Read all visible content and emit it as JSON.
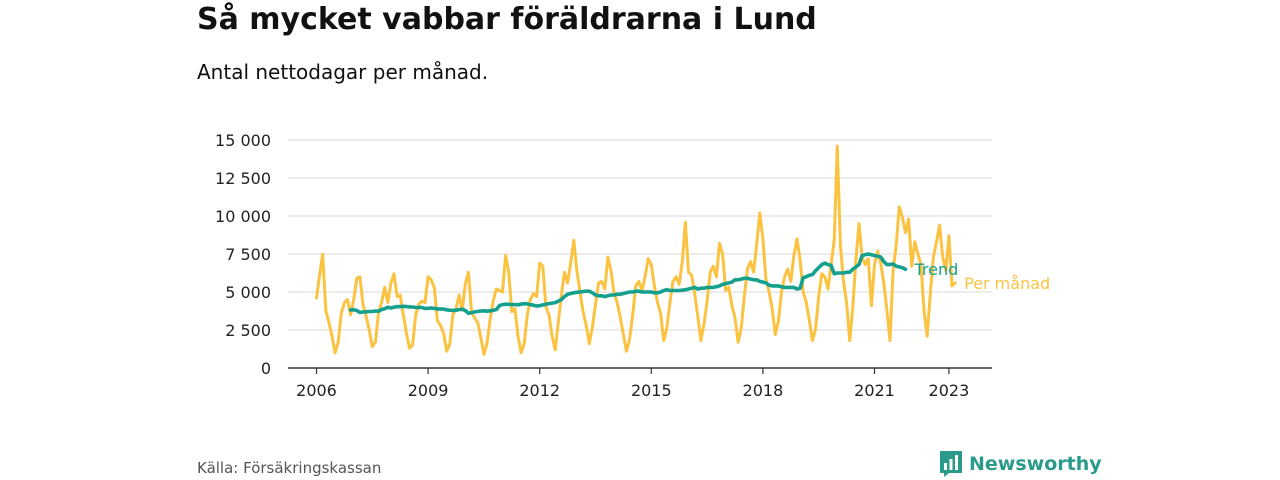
{
  "header": {
    "title": "Så mycket vabbar föräldrarna i Lund",
    "subtitle": "Antal nettodagar per månad."
  },
  "footer": {
    "source": "Källa: Försäkringskassan",
    "brand": "Newsworthy",
    "brand_icon": "bar-chart-logo-icon"
  },
  "colors": {
    "monthly": "#fbc341",
    "trend": "#14a08c",
    "grid": "#d9d9d9",
    "axis": "#333333"
  },
  "chart_data": {
    "type": "line",
    "ylim": [
      0,
      15000
    ],
    "yticks": [
      {
        "value": 0,
        "label": "0"
      },
      {
        "value": 2500,
        "label": "2 500"
      },
      {
        "value": 5000,
        "label": "5 000"
      },
      {
        "value": 7500,
        "label": "7 500"
      },
      {
        "value": 10000,
        "label": "10 000"
      },
      {
        "value": 12500,
        "label": "12 500"
      },
      {
        "value": 15000,
        "label": "15 000"
      }
    ],
    "xticks": [
      "2006",
      "2009",
      "2012",
      "2015",
      "2018",
      "2021",
      "2023"
    ],
    "grid": "horizontal",
    "series": [
      {
        "name": "Per månad",
        "start": "2006-01",
        "values": [
          4600,
          6100,
          7500,
          3800,
          3000,
          2100,
          1000,
          1700,
          3600,
          4300,
          4500,
          3500,
          4500,
          5900,
          6000,
          4200,
          3400,
          2500,
          1400,
          1700,
          3600,
          4300,
          5300,
          4300,
          5600,
          6200,
          4700,
          4800,
          3500,
          2300,
          1300,
          1500,
          3500,
          4200,
          4400,
          4300,
          6000,
          5800,
          5300,
          3100,
          2800,
          2300,
          1100,
          1600,
          3500,
          3900,
          4800,
          3800,
          5500,
          6300,
          3700,
          3300,
          3000,
          2000,
          900,
          1600,
          3200,
          4400,
          5200,
          5100,
          5000,
          7400,
          6300,
          3700,
          3900,
          2100,
          1000,
          1600,
          3500,
          4500,
          4900,
          4700,
          6900,
          6700,
          4000,
          3500,
          2100,
          1200,
          3000,
          4800,
          6300,
          5600,
          6900,
          8400,
          6400,
          5000,
          3700,
          2800,
          1600,
          2700,
          4200,
          5600,
          5700,
          5200,
          7300,
          6400,
          4900,
          4300,
          3300,
          2200,
          1100,
          1900,
          3500,
          5400,
          5700,
          5100,
          6000,
          7200,
          6800,
          5400,
          4300,
          3600,
          1800,
          2600,
          4300,
          5700,
          6000,
          5500,
          7000,
          9600,
          6300,
          6100,
          4900,
          3400,
          1800,
          2900,
          4400,
          6300,
          6700,
          6000,
          8200,
          7500,
          5100,
          5300,
          4100,
          3300,
          1700,
          2600,
          4700,
          6500,
          7000,
          6300,
          8200,
          10200,
          8500,
          5800,
          5000,
          3900,
          2200,
          3100,
          5000,
          6000,
          6500,
          5700,
          7400,
          8500,
          7100,
          5000,
          4300,
          3100,
          1800,
          2600,
          4700,
          6200,
          6000,
          5200,
          6800,
          8400,
          14600,
          8100,
          5700,
          4300,
          1800,
          4000,
          7100,
          9500,
          7300,
          6800,
          7200,
          4100,
          6800,
          7700,
          6900,
          5600,
          3800,
          1800,
          6400,
          8100,
          10600,
          9900,
          8900,
          9800,
          6700,
          8300,
          7500,
          6800,
          3700,
          2100,
          4900,
          7300,
          8300,
          9400,
          7300,
          6400,
          8700,
          5400,
          5600
        ]
      },
      {
        "name": "Trend",
        "start": "2006-12",
        "values": [
          3820,
          3830,
          3780,
          3650,
          3690,
          3700,
          3720,
          3720,
          3750,
          3740,
          3850,
          3900,
          4000,
          3950,
          4000,
          4040,
          4030,
          4060,
          4040,
          4020,
          4010,
          3980,
          3990,
          3980,
          3920,
          3930,
          3950,
          3920,
          3880,
          3890,
          3870,
          3830,
          3800,
          3790,
          3800,
          3840,
          3870,
          3780,
          3600,
          3640,
          3700,
          3720,
          3750,
          3760,
          3740,
          3760,
          3800,
          3840,
          4100,
          4170,
          4200,
          4190,
          4170,
          4180,
          4160,
          4200,
          4230,
          4220,
          4170,
          4130,
          4080,
          4100,
          4150,
          4200,
          4240,
          4270,
          4300,
          4400,
          4500,
          4700,
          4850,
          4900,
          4950,
          4980,
          5000,
          5030,
          5050,
          5050,
          4950,
          4800,
          4750,
          4750,
          4700,
          4750,
          4800,
          4800,
          4850,
          4850,
          4900,
          4950,
          5000,
          5000,
          5050,
          5050,
          5000,
          5000,
          5000,
          5000,
          4950,
          4950,
          5000,
          5100,
          5150,
          5100,
          5100,
          5100,
          5100,
          5120,
          5150,
          5200,
          5250,
          5300,
          5200,
          5250,
          5250,
          5300,
          5300,
          5300,
          5350,
          5400,
          5500,
          5550,
          5600,
          5650,
          5800,
          5800,
          5850,
          5900,
          5900,
          5850,
          5800,
          5800,
          5700,
          5650,
          5600,
          5450,
          5400,
          5400,
          5400,
          5350,
          5300,
          5300,
          5300,
          5300,
          5200,
          5250,
          5950,
          6000,
          6100,
          6150,
          6400,
          6600,
          6800,
          6900,
          6800,
          6750,
          6200,
          6250,
          6250,
          6250,
          6300,
          6300,
          6500,
          6650,
          6800,
          7400,
          7450,
          7500,
          7450,
          7400,
          7350,
          7300,
          7000,
          6800,
          6800,
          6850,
          6700,
          6650,
          6600,
          6500
        ]
      }
    ]
  }
}
